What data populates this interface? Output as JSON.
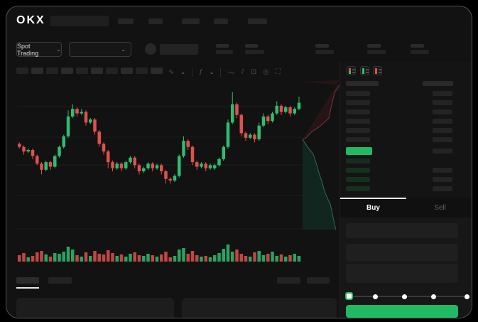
{
  "app": {
    "logo": "OKX"
  },
  "market_bar": {
    "selector_label": "Spot Trading",
    "chevron": "⌄"
  },
  "chart_toolbar": {
    "icons": [
      "∿",
      "⌄",
      "ƒ",
      "⌄",
      "〜",
      "⫽",
      "⊡",
      "◎",
      "⛶"
    ]
  },
  "orderbook": {
    "mode_icons": [
      "book-mode-combined",
      "book-mode-bids",
      "book-mode-asks"
    ]
  },
  "trade": {
    "buy_tab": "Buy",
    "sell_tab": "Sell"
  },
  "colors": {
    "up": "#2ebd70",
    "down": "#e0514c",
    "accent": "#21ba64",
    "grid": "#1c1c1c",
    "depth_ask_fill": "#2a1517",
    "depth_ask_line": "#6e3a3c",
    "depth_bid_fill": "#122921",
    "depth_bid_line": "#2f6a57"
  },
  "chart_data": {
    "type": "candlestick",
    "note": "skeleton UI - no axis labels visible; prices on relative 0-100 scale",
    "price_range": [
      30,
      95
    ],
    "candles_ochl": [
      [
        60,
        58,
        61,
        57
      ],
      [
        58,
        55,
        59,
        53
      ],
      [
        55,
        56,
        57,
        54
      ],
      [
        56,
        52,
        57,
        50
      ],
      [
        52,
        47,
        53,
        46
      ],
      [
        47,
        43,
        48,
        40
      ],
      [
        43,
        48,
        49,
        42
      ],
      [
        48,
        45,
        49,
        43
      ],
      [
        45,
        52,
        53,
        44
      ],
      [
        52,
        58,
        59,
        51
      ],
      [
        58,
        65,
        66,
        57
      ],
      [
        65,
        78,
        82,
        64
      ],
      [
        78,
        83,
        86,
        77
      ],
      [
        83,
        80,
        84,
        78
      ],
      [
        80,
        81,
        83,
        79
      ],
      [
        81,
        74,
        82,
        72
      ],
      [
        74,
        76,
        77,
        73
      ],
      [
        76,
        68,
        77,
        66
      ],
      [
        68,
        60,
        69,
        58
      ],
      [
        60,
        55,
        61,
        53
      ],
      [
        55,
        48,
        56,
        44
      ],
      [
        48,
        44,
        49,
        42
      ],
      [
        44,
        47,
        48,
        43
      ],
      [
        47,
        44,
        48,
        42
      ],
      [
        44,
        48,
        49,
        43
      ],
      [
        48,
        51,
        52,
        47
      ],
      [
        51,
        46,
        52,
        44
      ],
      [
        46,
        42,
        47,
        40
      ],
      [
        42,
        44,
        45,
        41
      ],
      [
        44,
        47,
        48,
        43
      ],
      [
        47,
        44,
        48,
        42
      ],
      [
        44,
        46,
        47,
        43
      ],
      [
        46,
        42,
        47,
        40
      ],
      [
        42,
        37,
        43,
        34
      ],
      [
        37,
        36,
        38,
        34
      ],
      [
        36,
        39,
        40,
        35
      ],
      [
        39,
        52,
        53,
        38
      ],
      [
        52,
        62,
        65,
        51
      ],
      [
        62,
        58,
        63,
        56
      ],
      [
        58,
        48,
        59,
        46
      ],
      [
        48,
        45,
        49,
        43
      ],
      [
        45,
        47,
        48,
        44
      ],
      [
        47,
        44,
        48,
        42
      ],
      [
        44,
        46,
        47,
        43
      ],
      [
        44,
        46,
        47,
        43
      ],
      [
        46,
        50,
        51,
        45
      ],
      [
        50,
        58,
        59,
        49
      ],
      [
        58,
        74,
        76,
        57
      ],
      [
        74,
        86,
        94,
        73
      ],
      [
        86,
        79,
        87,
        77
      ],
      [
        79,
        67,
        80,
        65
      ],
      [
        67,
        64,
        68,
        62
      ],
      [
        64,
        66,
        67,
        63
      ],
      [
        66,
        63,
        67,
        61
      ],
      [
        63,
        72,
        74,
        62
      ],
      [
        72,
        78,
        80,
        71
      ],
      [
        78,
        75,
        79,
        73
      ],
      [
        75,
        80,
        81,
        74
      ],
      [
        80,
        85,
        88,
        79
      ],
      [
        85,
        81,
        86,
        79
      ],
      [
        81,
        84,
        85,
        80
      ],
      [
        84,
        80,
        85,
        78
      ],
      [
        80,
        83,
        84,
        79
      ],
      [
        83,
        87,
        91,
        82
      ]
    ],
    "volumes": [
      9,
      12,
      6,
      8,
      13,
      15,
      10,
      7,
      12,
      11,
      14,
      21,
      17,
      9,
      7,
      13,
      8,
      15,
      11,
      10,
      16,
      12,
      8,
      10,
      7,
      11,
      13,
      9,
      8,
      11,
      9,
      7,
      10,
      14,
      6,
      8,
      17,
      19,
      11,
      15,
      9,
      7,
      8,
      6,
      9,
      12,
      18,
      24,
      14,
      17,
      11,
      8,
      7,
      13,
      15,
      9,
      11,
      14,
      8,
      10,
      7,
      9,
      11,
      8
    ],
    "depth": {
      "asks_line": [
        [
          0,
          0.4
        ],
        [
          0.1,
          0.39
        ],
        [
          0.25,
          0.35
        ],
        [
          0.44,
          0.32
        ],
        [
          0.58,
          0.29
        ],
        [
          0.71,
          0.26
        ],
        [
          0.77,
          0.19
        ],
        [
          0.87,
          0.09
        ],
        [
          1,
          0.04
        ]
      ],
      "bids_line": [
        [
          0,
          0.4
        ],
        [
          0.13,
          0.45
        ],
        [
          0.29,
          0.5
        ],
        [
          0.37,
          0.56
        ],
        [
          0.44,
          0.62
        ],
        [
          0.52,
          0.68
        ],
        [
          0.6,
          0.75
        ],
        [
          0.67,
          0.79
        ],
        [
          0.75,
          0.83
        ],
        [
          0.81,
          0.9
        ],
        [
          0.9,
          1.0
        ]
      ]
    }
  }
}
